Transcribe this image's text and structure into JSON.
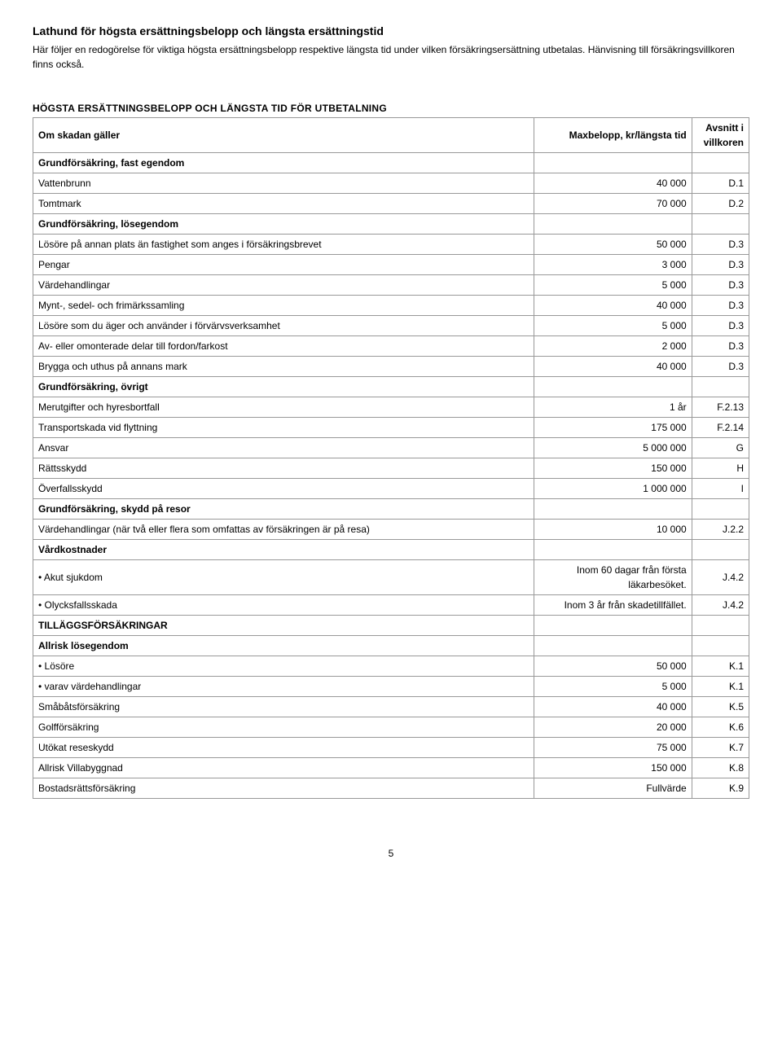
{
  "title": "Lathund för högsta ersättningsbelopp och längsta ersättningstid",
  "intro": "Här följer en redogörelse för viktiga högsta ersättningsbelopp respektive längsta tid under vilken försäkringsersättning utbetalas. Hänvisning till försäkringsvillkoren finns också.",
  "tableTitle": "HÖGSTA ERSÄTTNINGSBELOPP OCH LÄNGSTA TID FÖR UTBETALNING",
  "header": {
    "c1": "Om skadan gäller",
    "c2": "Maxbelopp, kr/längsta tid",
    "c3": "Avsnitt i villkoren"
  },
  "rows": [
    {
      "c1": "Grundförsäkring, fast egendom",
      "c2": "",
      "c3": "",
      "bold": true
    },
    {
      "c1": "Vattenbrunn",
      "c2": "40 000",
      "c3": "D.1"
    },
    {
      "c1": "Tomtmark",
      "c2": "70 000",
      "c3": "D.2"
    },
    {
      "c1": "Grundförsäkring, lösegendom",
      "c2": "",
      "c3": "",
      "bold": true
    },
    {
      "c1": "Lösöre på annan plats än fastighet som anges i försäkringsbrevet",
      "c2": "50 000",
      "c3": "D.3"
    },
    {
      "c1": "Pengar",
      "c2": "3 000",
      "c3": "D.3"
    },
    {
      "c1": "Värdehandlingar",
      "c2": "5 000",
      "c3": "D.3"
    },
    {
      "c1": "Mynt-, sedel- och frimärkssamling",
      "c2": "40 000",
      "c3": "D.3"
    },
    {
      "c1": "Lösöre som du äger och använder i förvärvsverksamhet",
      "c2": "5 000",
      "c3": "D.3"
    },
    {
      "c1": "Av- eller omonterade delar till fordon/farkost",
      "c2": "2 000",
      "c3": "D.3"
    },
    {
      "c1": "Brygga och uthus på annans mark",
      "c2": "40 000",
      "c3": "D.3"
    },
    {
      "c1": "Grundförsäkring, övrigt",
      "c2": "",
      "c3": "",
      "bold": true
    },
    {
      "c1": "Merutgifter och hyresbortfall",
      "c2": "1 år",
      "c3": "F.2.13"
    },
    {
      "c1": "Transportskada vid flyttning",
      "c2": "175 000",
      "c3": "F.2.14"
    },
    {
      "c1": "Ansvar",
      "c2": "5 000 000",
      "c3": "G"
    },
    {
      "c1": "Rättsskydd",
      "c2": "150 000",
      "c3": "H"
    },
    {
      "c1": "Överfallsskydd",
      "c2": "1 000 000",
      "c3": "I"
    },
    {
      "c1": "Grundförsäkring, skydd på resor",
      "c2": "",
      "c3": "",
      "bold": true
    },
    {
      "c1": "Värdehandlingar (när två eller flera som omfattas av försäkringen är på resa)",
      "c2": "10 000",
      "c3": "J.2.2"
    },
    {
      "c1": "Vårdkostnader",
      "c2": "",
      "c3": "",
      "bold": true
    },
    {
      "c1": "• Akut sjukdom",
      "c2": "Inom 60 dagar från första läkarbesöket.",
      "c3": "J.4.2"
    },
    {
      "c1": "• Olycksfallsskada",
      "c2": "Inom 3 år från skadetillfället.",
      "c3": "J.4.2"
    },
    {
      "c1": "TILLÄGGSFÖRSÄKRINGAR",
      "c2": "",
      "c3": "",
      "bold": true
    },
    {
      "c1": "Allrisk lösegendom",
      "c2": "",
      "c3": "",
      "bold": true
    },
    {
      "c1": "• Lösöre",
      "c2": "50 000",
      "c3": "K.1"
    },
    {
      "c1": "• varav värdehandlingar",
      "c2": "5 000",
      "c3": "K.1"
    },
    {
      "c1": "Småbåtsförsäkring",
      "c2": "40 000",
      "c3": "K.5"
    },
    {
      "c1": "Golfförsäkring",
      "c2": "20 000",
      "c3": "K.6"
    },
    {
      "c1": "Utökat reseskydd",
      "c2": "75 000",
      "c3": "K.7"
    },
    {
      "c1": "Allrisk Villabyggnad",
      "c2": "150 000",
      "c3": "K.8"
    },
    {
      "c1": "Bostadsrättsförsäkring",
      "c2": "Fullvärde",
      "c3": "K.9"
    }
  ],
  "pageNumber": "5",
  "style": {
    "borderColor": "#999999",
    "textColor": "#000000",
    "background": "#ffffff",
    "fontBody": 12,
    "fontTitle": 14
  }
}
